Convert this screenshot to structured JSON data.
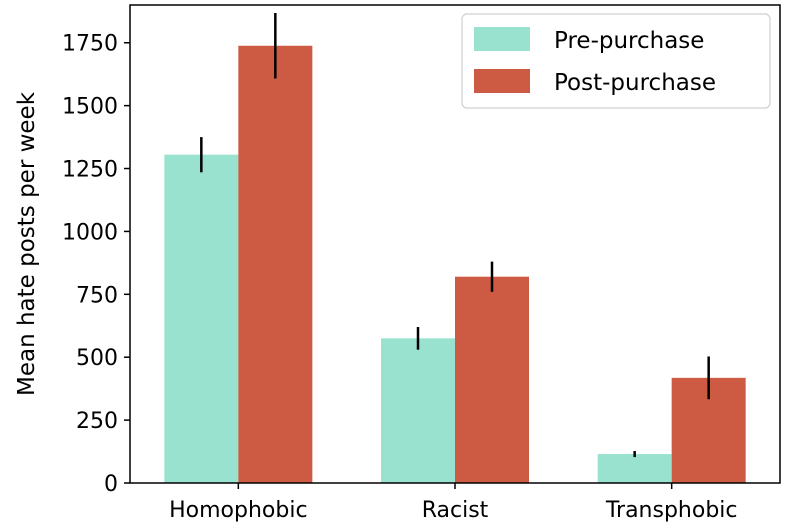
{
  "chart_data": {
    "type": "bar",
    "title": "",
    "xlabel": "",
    "ylabel": "Mean hate posts per week",
    "categories": [
      "Homophobic",
      "Racist",
      "Transphobic"
    ],
    "series": [
      {
        "name": "Pre-purchase",
        "color": "#98e2cf",
        "values": [
          1305,
          575,
          115
        ],
        "error": [
          70,
          45,
          12
        ]
      },
      {
        "name": "Post-purchase",
        "color": "#cd5b43",
        "values": [
          1738,
          820,
          418
        ],
        "error": [
          130,
          60,
          85
        ]
      }
    ],
    "ylim": [
      0,
      1900
    ],
    "yticks": [
      0,
      250,
      500,
      750,
      1000,
      1250,
      1500,
      1750
    ],
    "ytick_labels": [
      "0",
      "250",
      "500",
      "750",
      "1000",
      "1250",
      "1500",
      "1750"
    ],
    "legend_position": "top-right",
    "grid": false
  }
}
